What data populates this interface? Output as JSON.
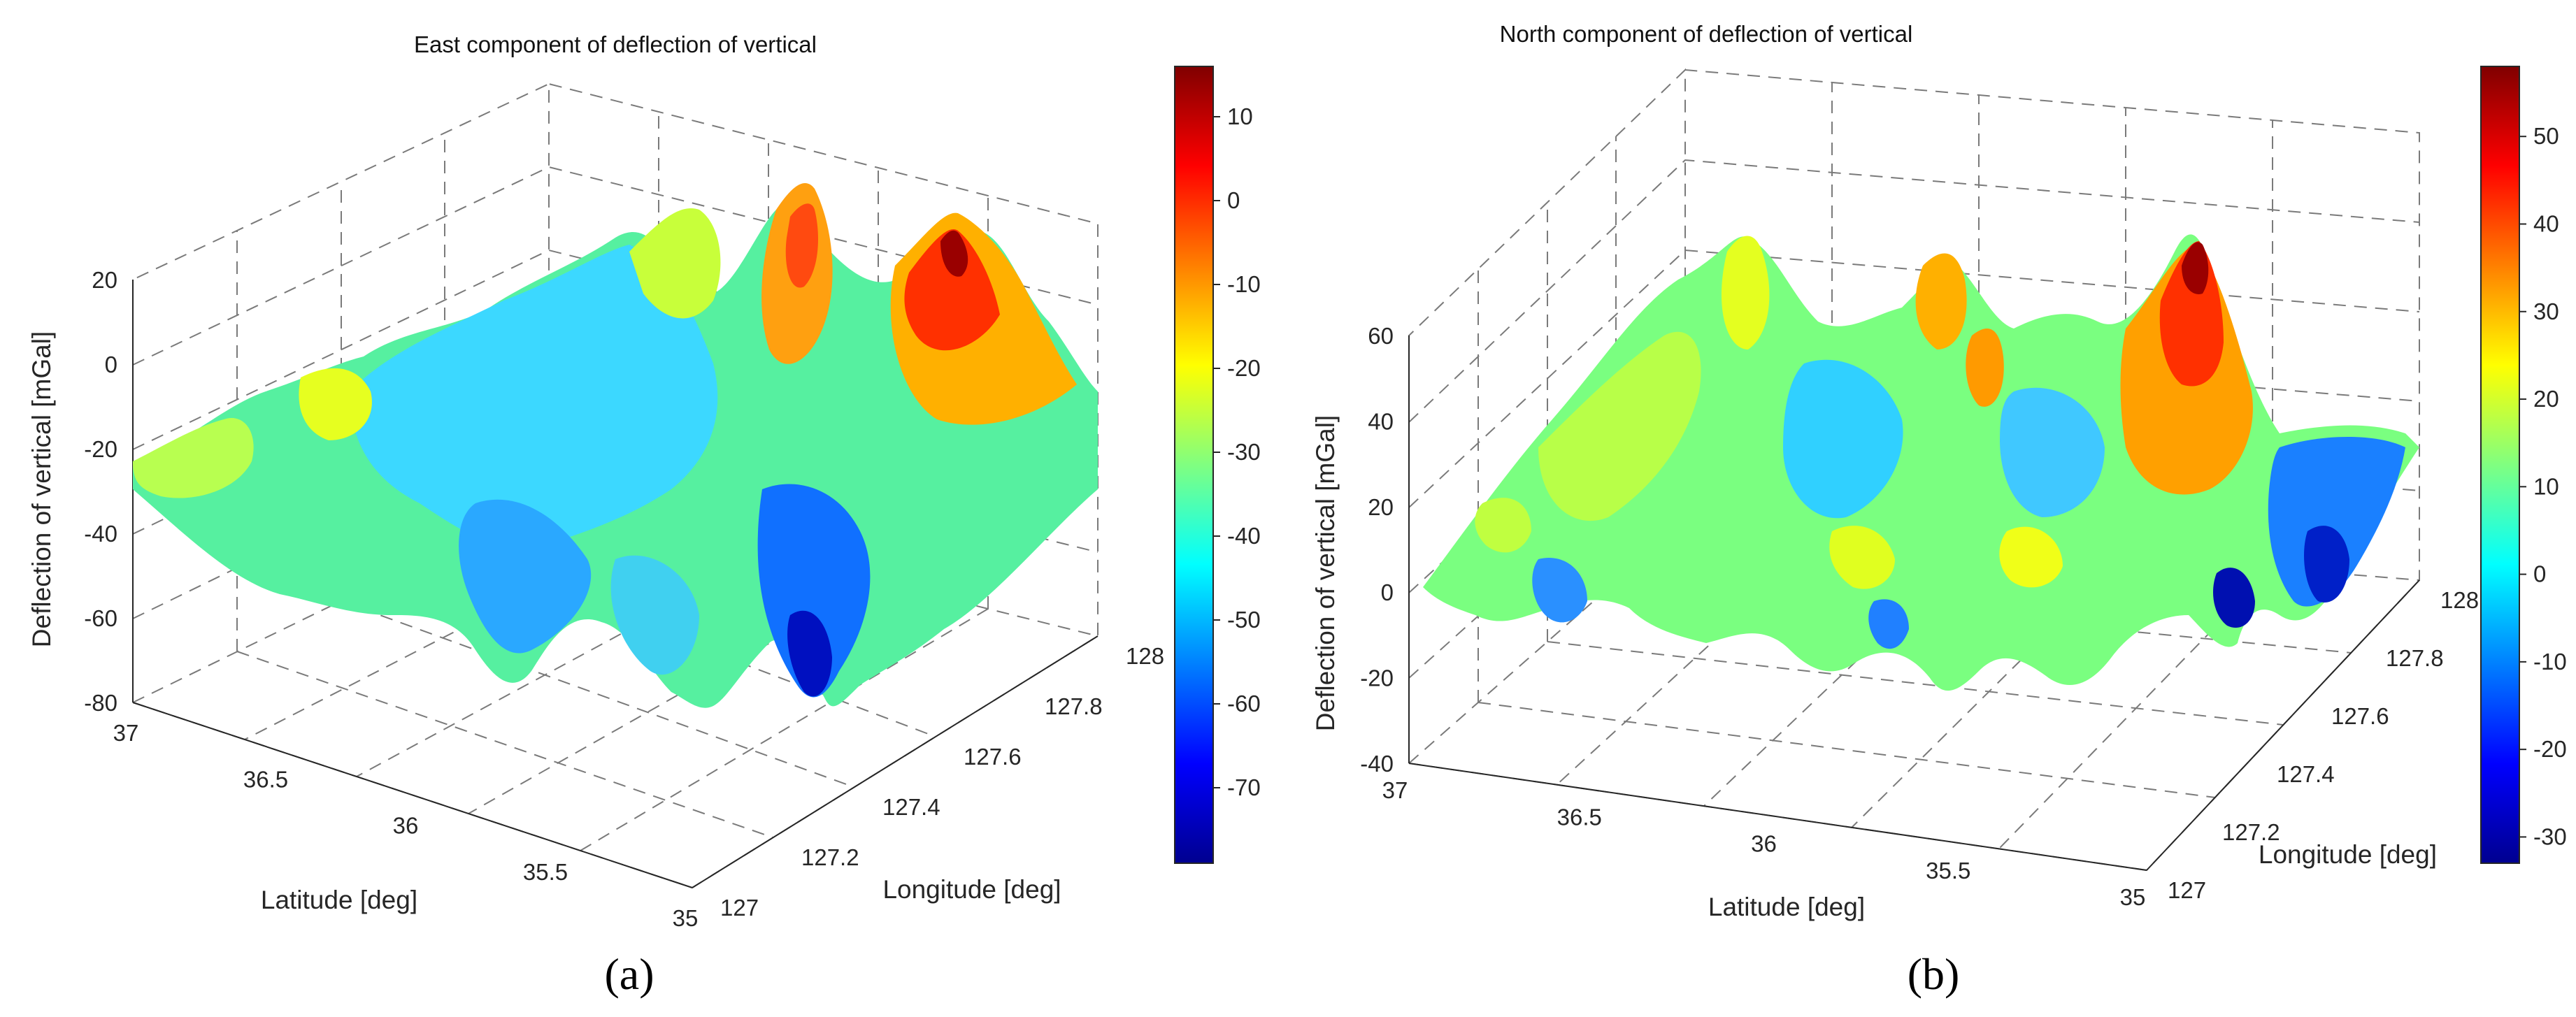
{
  "figure": {
    "panel_a_label": "(a)",
    "panel_b_label": "(b)"
  },
  "colors": {
    "colormap": "jet",
    "grid": "#7a7a7a",
    "axis": "#262626"
  },
  "chart_data": [
    {
      "type": "surface",
      "title": "East component of deflection of vertical",
      "xlabel": "Latitude [deg]",
      "ylabel": "Longitude [deg]",
      "zlabel": "Deflection of vertical [mGal]",
      "x_ticks": [
        "37",
        "36.5",
        "36",
        "35.5",
        "35"
      ],
      "y_ticks": [
        "127",
        "127.2",
        "127.4",
        "127.6",
        "127.8",
        "128"
      ],
      "z_ticks": [
        "-80",
        "-60",
        "-40",
        "-20",
        "0",
        "20"
      ],
      "xlim": [
        35,
        37
      ],
      "ylim": [
        127,
        128
      ],
      "zlim": [
        -80,
        20
      ],
      "colorbar_ticks": [
        "10",
        "0",
        "-10",
        "-20",
        "-30",
        "-40",
        "-50",
        "-60",
        "-70"
      ],
      "colorbar_range": [
        -79,
        16
      ],
      "grid": true,
      "peaks": [
        {
          "lat": 35.5,
          "lon": 127.9,
          "value": 16
        },
        {
          "lat": 36.2,
          "lon": 127.85,
          "value": 10
        },
        {
          "lat": 35.3,
          "lon": 127.25,
          "value": -79
        }
      ]
    },
    {
      "type": "surface",
      "title": "North component of deflection of vertical",
      "xlabel": "Latitude [deg]",
      "ylabel": "Longitude [deg]",
      "zlabel": "Deflection of vertical [mGal]",
      "x_ticks": [
        "37",
        "36.5",
        "36",
        "35.5",
        "35"
      ],
      "y_ticks": [
        "127",
        "127.2",
        "127.4",
        "127.6",
        "127.8",
        "128"
      ],
      "z_ticks": [
        "-40",
        "-20",
        "0",
        "20",
        "40",
        "60"
      ],
      "xlim": [
        35,
        37
      ],
      "ylim": [
        127,
        128
      ],
      "zlim": [
        -40,
        60
      ],
      "colorbar_ticks": [
        "50",
        "40",
        "30",
        "20",
        "10",
        "0",
        "-10",
        "-20",
        "-30"
      ],
      "colorbar_range": [
        -33,
        58
      ],
      "grid": true,
      "peaks": [
        {
          "lat": 35.5,
          "lon": 127.85,
          "value": 57
        },
        {
          "lat": 35.2,
          "lon": 127.9,
          "value": -30
        }
      ]
    }
  ]
}
